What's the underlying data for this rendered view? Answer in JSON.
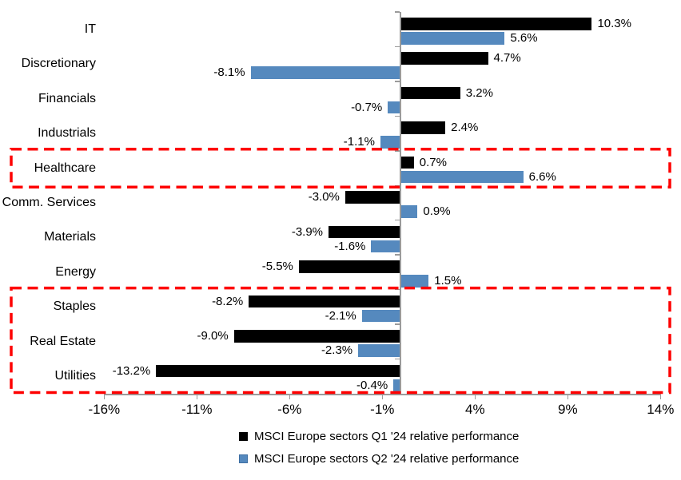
{
  "chart_data": {
    "type": "bar",
    "orientation": "horizontal",
    "title": "",
    "categories": [
      "IT",
      "Discretionary",
      "Financials",
      "Industrials",
      "Healthcare",
      "Comm. Services",
      "Materials",
      "Energy",
      "Staples",
      "Real Estate",
      "Utilities"
    ],
    "series": [
      {
        "name": "MSCI Europe sectors Q1 '24 relative performance",
        "color": "#000000",
        "values": [
          10.3,
          4.7,
          3.2,
          2.4,
          0.7,
          -3.0,
          -3.9,
          -5.5,
          -8.2,
          -9.0,
          -13.2
        ],
        "labels": [
          "10.3%",
          "4.7%",
          "3.2%",
          "2.4%",
          "0.7%",
          "-3.0%",
          "-3.9%",
          "-5.5%",
          "-8.2%",
          "-9.0%",
          "-13.2%"
        ]
      },
      {
        "name": "MSCI Europe sectors Q2 '24 relative performance",
        "color": "#5589BE",
        "values": [
          5.6,
          -8.1,
          -0.7,
          -1.1,
          6.6,
          0.9,
          -1.6,
          1.5,
          -2.1,
          -2.3,
          -0.4
        ],
        "labels": [
          "5.6%",
          "-8.1%",
          "-0.7%",
          "-1.1%",
          "6.6%",
          "0.9%",
          "-1.6%",
          "1.5%",
          "-2.1%",
          "-2.3%",
          "-0.4%"
        ]
      }
    ],
    "x_axis": {
      "tick_labels": [
        "-16%",
        "-11%",
        "-6%",
        "-1%",
        "4%",
        "9%",
        "14%"
      ],
      "tick_values": [
        -16,
        -11,
        -6,
        -1,
        4,
        9,
        14
      ],
      "min": -16,
      "max": 14
    },
    "grid": false,
    "legend_position": "bottom",
    "axis_color": "#9B9B9B",
    "text_color": "#000000",
    "highlight": {
      "color": "#FE0000",
      "boxes": [
        {
          "name": "healthcare-highlight",
          "first_row": 4,
          "last_row": 4
        },
        {
          "name": "defensive-sectors-highlight",
          "first_row": 8,
          "last_row": 10
        }
      ]
    }
  }
}
